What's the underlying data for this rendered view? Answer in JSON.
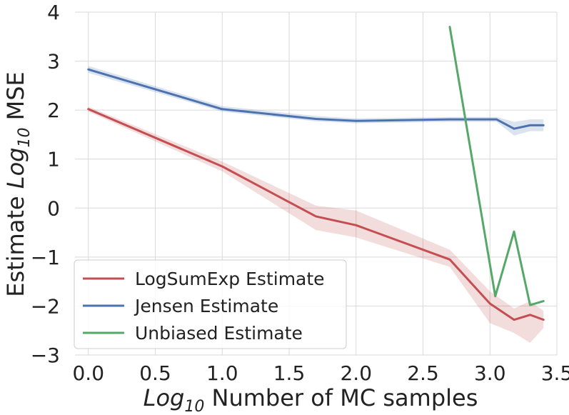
{
  "chart_data": {
    "type": "line",
    "title": "",
    "xlabel": "Log10 Number of MC samples",
    "ylabel": "Estimate Log10 MSE",
    "xlabel_parts": {
      "main": "Log",
      "sub": "10",
      "rest": " Number of MC samples"
    },
    "ylabel_parts": {
      "pre": "Estimate ",
      "main": "Log",
      "sub": "10",
      "rest": " MSE"
    },
    "xlim": [
      -0.1,
      3.5
    ],
    "ylim": [
      -3,
      4
    ],
    "xticks": [
      0.0,
      0.5,
      1.0,
      1.5,
      2.0,
      2.5,
      3.0,
      3.5
    ],
    "xtick_labels": [
      "0.0",
      "0.5",
      "1.0",
      "1.5",
      "2.0",
      "2.5",
      "3.0",
      "3.5"
    ],
    "yticks": [
      -3,
      -2,
      -1,
      0,
      1,
      2,
      3,
      4
    ],
    "ytick_labels": [
      "−3",
      "−2",
      "−1",
      "0",
      "1",
      "2",
      "3",
      "4"
    ],
    "grid": true,
    "legend_position": "lower-left",
    "series": [
      {
        "name": "LogSumExp Estimate",
        "color": "#c44e52",
        "band_color": "#c44e52",
        "x": [
          0.0,
          1.0,
          1.7,
          2.0,
          2.7,
          3.0,
          3.18,
          3.3,
          3.4
        ],
        "y": [
          2.02,
          0.85,
          -0.17,
          -0.35,
          -1.05,
          -1.95,
          -2.28,
          -2.18,
          -2.28
        ],
        "lower": [
          1.97,
          0.75,
          -0.45,
          -0.6,
          -1.2,
          -2.35,
          -2.55,
          -2.75,
          -2.45
        ],
        "upper": [
          2.07,
          0.95,
          0.05,
          -0.05,
          -0.85,
          -1.7,
          -2.05,
          -1.9,
          -2.1
        ]
      },
      {
        "name": "Jensen Estimate",
        "color": "#4c72b0",
        "band_color": "#4c72b0",
        "x": [
          0.0,
          1.0,
          1.7,
          2.0,
          2.7,
          3.0,
          3.05,
          3.18,
          3.3,
          3.4
        ],
        "y": [
          2.83,
          2.02,
          1.82,
          1.78,
          1.81,
          1.81,
          1.81,
          1.62,
          1.69,
          1.69
        ],
        "lower": [
          2.76,
          1.97,
          1.77,
          1.73,
          1.76,
          1.76,
          1.76,
          1.48,
          1.57,
          1.57
        ],
        "upper": [
          2.9,
          2.08,
          1.88,
          1.83,
          1.86,
          1.86,
          1.86,
          1.76,
          1.81,
          1.81
        ]
      },
      {
        "name": "Unbiased Estimate",
        "color": "#55a868",
        "x": [
          2.7,
          3.04,
          3.18,
          3.3,
          3.4
        ],
        "y": [
          3.7,
          -1.8,
          -0.48,
          -1.98,
          -1.9
        ]
      }
    ]
  }
}
